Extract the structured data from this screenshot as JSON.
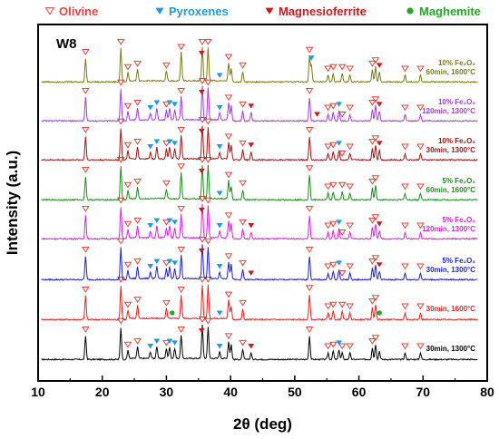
{
  "colors": {
    "olivine": "#e8443a",
    "pyroxenes": "#1e9be0",
    "magnesioferrite": "#cc1a1a",
    "maghemite": "#22aa22"
  },
  "legend": [
    {
      "key": "olivine",
      "label": "Olivine",
      "marker": "open-triangle-down"
    },
    {
      "key": "pyroxenes",
      "label": "Pyroxenes",
      "marker": "filled-triangle-down"
    },
    {
      "key": "magnesioferrite",
      "label": "Magnesioferrite",
      "marker": "filled-triangle-down"
    },
    {
      "key": "maghemite",
      "label": "Maghemite",
      "marker": "filled-circle"
    }
  ],
  "chart_data": {
    "type": "line",
    "panel_label": "W8",
    "xlabel": "2θ (deg)",
    "ylabel": "Intensity (a.u.)",
    "xlim": [
      10,
      80
    ],
    "x_ticks": [
      "10",
      "20",
      "30",
      "40",
      "50",
      "60",
      "70",
      "80"
    ],
    "y_ticks_shown": false,
    "series": [
      {
        "name": "30min, 1300°C",
        "label_lines": [
          "30min, 1300°C"
        ],
        "color": "#000000",
        "peaks": [
          [
            17.4,
            0.7
          ],
          [
            22.9,
            0.95
          ],
          [
            24.0,
            0.25
          ],
          [
            25.5,
            0.35
          ],
          [
            27.5,
            0.2
          ],
          [
            28.5,
            0.35
          ],
          [
            30.0,
            0.3
          ],
          [
            30.5,
            0.35
          ],
          [
            31.3,
            0.3
          ],
          [
            32.3,
            0.7
          ],
          [
            35.6,
            1.0
          ],
          [
            36.5,
            0.95
          ],
          [
            38.3,
            0.2
          ],
          [
            39.7,
            0.5
          ],
          [
            40.1,
            0.45
          ],
          [
            41.9,
            0.3
          ],
          [
            43.2,
            0.2
          ],
          [
            52.3,
            0.7
          ],
          [
            55.2,
            0.2
          ],
          [
            56.0,
            0.25
          ],
          [
            56.9,
            0.3
          ],
          [
            57.4,
            0.2
          ],
          [
            58.6,
            0.2
          ],
          [
            62.1,
            0.35
          ],
          [
            62.6,
            0.45
          ],
          [
            63.2,
            0.25
          ],
          [
            67.2,
            0.2
          ],
          [
            69.6,
            0.2
          ]
        ],
        "markers": {
          "olivine": [
            17.4,
            22.9,
            24.0,
            25.5,
            30.0,
            32.3,
            35.6,
            36.5,
            39.7,
            41.9,
            52.3,
            55.2,
            56.0,
            57.4,
            58.6,
            62.1,
            62.6,
            67.2,
            69.6
          ],
          "pyroxenes": [
            27.5,
            28.5,
            30.5,
            31.3,
            38.3,
            56.9
          ],
          "magnesioferrite": [
            35.5,
            43.2
          ],
          "maghemite": []
        }
      },
      {
        "name": "30min, 1600°C",
        "label_lines": [
          "30min, 1600°C"
        ],
        "color": "#e8231f",
        "peaks": [
          [
            17.4,
            0.7
          ],
          [
            22.9,
            1.0
          ],
          [
            24.0,
            0.25
          ],
          [
            25.5,
            0.4
          ],
          [
            30.0,
            0.3
          ],
          [
            32.3,
            0.7
          ],
          [
            35.6,
            1.0
          ],
          [
            36.5,
            1.0
          ],
          [
            39.7,
            0.55
          ],
          [
            40.1,
            0.4
          ],
          [
            41.9,
            0.3
          ],
          [
            52.3,
            0.75
          ],
          [
            55.2,
            0.2
          ],
          [
            56.0,
            0.25
          ],
          [
            57.4,
            0.25
          ],
          [
            58.6,
            0.2
          ],
          [
            62.1,
            0.35
          ],
          [
            62.6,
            0.45
          ],
          [
            67.2,
            0.2
          ],
          [
            69.6,
            0.2
          ]
        ],
        "markers": {
          "olivine": [
            17.4,
            22.9,
            24.0,
            25.5,
            30.0,
            32.3,
            35.6,
            36.5,
            39.7,
            41.9,
            52.3,
            55.2,
            56.0,
            57.4,
            58.6,
            62.1,
            62.6,
            67.2,
            69.6
          ],
          "pyroxenes": [
            38.3
          ],
          "magnesioferrite": [],
          "maghemite": [
            30.9,
            63.2
          ]
        }
      },
      {
        "name": "5% Fe2O3 30min, 1300°C",
        "label_lines": [
          "5% Fe₂O₃",
          "30min, 1300°C"
        ],
        "color": "#1f1fd6",
        "peaks": [
          [
            17.4,
            0.7
          ],
          [
            22.9,
            0.95
          ],
          [
            24.0,
            0.25
          ],
          [
            25.5,
            0.35
          ],
          [
            27.5,
            0.2
          ],
          [
            28.5,
            0.35
          ],
          [
            30.0,
            0.3
          ],
          [
            30.5,
            0.35
          ],
          [
            31.3,
            0.3
          ],
          [
            32.3,
            0.7
          ],
          [
            35.6,
            1.0
          ],
          [
            36.5,
            0.95
          ],
          [
            38.3,
            0.2
          ],
          [
            39.7,
            0.5
          ],
          [
            40.1,
            0.45
          ],
          [
            41.9,
            0.3
          ],
          [
            52.3,
            0.7
          ],
          [
            55.2,
            0.2
          ],
          [
            56.0,
            0.25
          ],
          [
            56.9,
            0.3
          ],
          [
            58.6,
            0.2
          ],
          [
            62.1,
            0.35
          ],
          [
            62.6,
            0.45
          ],
          [
            63.2,
            0.25
          ],
          [
            67.2,
            0.2
          ],
          [
            69.6,
            0.2
          ]
        ],
        "markers": {
          "olivine": [
            17.4,
            22.9,
            24.0,
            25.5,
            30.0,
            32.3,
            35.6,
            36.5,
            39.7,
            41.9,
            52.3,
            55.2,
            56.0,
            57.4,
            58.6,
            62.1,
            62.6,
            67.2,
            69.6
          ],
          "pyroxenes": [
            27.5,
            28.5,
            30.5,
            31.3,
            38.3,
            56.9
          ],
          "magnesioferrite": [
            35.5,
            43.2,
            63.2
          ],
          "maghemite": []
        }
      },
      {
        "name": "5% Fe2O3 120min, 1300°C",
        "label_lines": [
          "5% Fe₂O₃",
          "120min, 1300°C"
        ],
        "color": "#e020e0",
        "peaks": [
          [
            17.4,
            0.7
          ],
          [
            22.9,
            0.95
          ],
          [
            24.0,
            0.25
          ],
          [
            25.5,
            0.35
          ],
          [
            27.5,
            0.2
          ],
          [
            28.5,
            0.35
          ],
          [
            30.0,
            0.3
          ],
          [
            30.5,
            0.35
          ],
          [
            31.3,
            0.3
          ],
          [
            32.3,
            0.7
          ],
          [
            35.6,
            1.0
          ],
          [
            36.5,
            0.95
          ],
          [
            38.3,
            0.2
          ],
          [
            39.7,
            0.5
          ],
          [
            40.1,
            0.45
          ],
          [
            41.9,
            0.3
          ],
          [
            43.2,
            0.2
          ],
          [
            52.3,
            0.7
          ],
          [
            55.2,
            0.2
          ],
          [
            56.0,
            0.25
          ],
          [
            56.9,
            0.3
          ],
          [
            58.6,
            0.2
          ],
          [
            62.1,
            0.35
          ],
          [
            62.6,
            0.45
          ],
          [
            63.2,
            0.25
          ],
          [
            67.2,
            0.2
          ],
          [
            69.6,
            0.2
          ]
        ],
        "markers": {
          "olivine": [
            17.4,
            22.9,
            24.0,
            25.5,
            30.0,
            32.3,
            35.6,
            36.5,
            39.7,
            41.9,
            52.3,
            55.2,
            56.0,
            57.4,
            58.6,
            62.1,
            62.6,
            67.2,
            69.6
          ],
          "pyroxenes": [
            27.5,
            28.5,
            30.5,
            31.3,
            38.3,
            56.9
          ],
          "magnesioferrite": [
            35.5,
            43.2,
            63.2
          ],
          "maghemite": []
        }
      },
      {
        "name": "5% Fe2O3 60min, 1600°C",
        "label_lines": [
          "5% Fe₂O₃",
          "60min, 1600°C"
        ],
        "color": "#1e8c1e",
        "peaks": [
          [
            17.4,
            0.7
          ],
          [
            22.9,
            1.0
          ],
          [
            24.0,
            0.25
          ],
          [
            25.5,
            0.35
          ],
          [
            30.0,
            0.3
          ],
          [
            32.3,
            0.8
          ],
          [
            35.6,
            1.0
          ],
          [
            36.5,
            1.0
          ],
          [
            39.7,
            0.55
          ],
          [
            40.1,
            0.4
          ],
          [
            41.9,
            0.3
          ],
          [
            52.3,
            0.75
          ],
          [
            55.2,
            0.2
          ],
          [
            56.0,
            0.25
          ],
          [
            57.4,
            0.25
          ],
          [
            58.6,
            0.2
          ],
          [
            62.1,
            0.35
          ],
          [
            62.6,
            0.45
          ],
          [
            67.2,
            0.2
          ],
          [
            69.6,
            0.2
          ]
        ],
        "markers": {
          "olivine": [
            17.4,
            22.9,
            24.0,
            25.5,
            30.0,
            32.3,
            35.6,
            36.5,
            39.7,
            41.9,
            52.3,
            55.2,
            56.0,
            57.4,
            58.6,
            62.1,
            62.6,
            67.2,
            69.6
          ],
          "pyroxenes": [
            38.3
          ],
          "magnesioferrite": [
            35.5
          ],
          "maghemite": []
        }
      },
      {
        "name": "10% Fe2O3 30min, 1300°C",
        "label_lines": [
          "10% Fe₂O₃",
          "30min, 1300°C"
        ],
        "color": "#a01515",
        "peaks": [
          [
            17.4,
            0.7
          ],
          [
            22.9,
            0.95
          ],
          [
            24.0,
            0.25
          ],
          [
            25.5,
            0.35
          ],
          [
            27.5,
            0.2
          ],
          [
            28.5,
            0.35
          ],
          [
            30.0,
            0.3
          ],
          [
            30.5,
            0.35
          ],
          [
            31.3,
            0.3
          ],
          [
            32.3,
            0.7
          ],
          [
            35.6,
            1.0
          ],
          [
            36.5,
            0.95
          ],
          [
            38.3,
            0.2
          ],
          [
            39.7,
            0.5
          ],
          [
            40.1,
            0.45
          ],
          [
            41.9,
            0.3
          ],
          [
            43.2,
            0.25
          ],
          [
            52.3,
            0.7
          ],
          [
            55.2,
            0.2
          ],
          [
            56.0,
            0.25
          ],
          [
            56.9,
            0.3
          ],
          [
            58.6,
            0.2
          ],
          [
            62.1,
            0.35
          ],
          [
            62.6,
            0.45
          ],
          [
            63.2,
            0.3
          ],
          [
            67.2,
            0.2
          ],
          [
            69.6,
            0.2
          ]
        ],
        "markers": {
          "olivine": [
            17.4,
            22.9,
            24.0,
            25.5,
            30.0,
            32.3,
            35.6,
            36.5,
            39.7,
            41.9,
            52.3,
            55.2,
            56.0,
            57.4,
            58.6,
            62.1,
            62.6,
            67.2,
            69.6
          ],
          "pyroxenes": [
            27.5,
            28.5,
            30.5,
            31.3,
            38.3,
            56.9
          ],
          "magnesioferrite": [
            35.5,
            43.2,
            63.2
          ],
          "maghemite": []
        }
      },
      {
        "name": "10% Fe2O3 120min, 1300°C",
        "label_lines": [
          "10% Fe₂O₃",
          "120min, 1300°C"
        ],
        "color": "#a23be0",
        "peaks": [
          [
            17.4,
            0.7
          ],
          [
            22.9,
            0.95
          ],
          [
            24.0,
            0.25
          ],
          [
            25.5,
            0.35
          ],
          [
            27.5,
            0.2
          ],
          [
            28.5,
            0.35
          ],
          [
            30.0,
            0.3
          ],
          [
            30.5,
            0.35
          ],
          [
            31.3,
            0.3
          ],
          [
            32.3,
            0.7
          ],
          [
            35.6,
            1.0
          ],
          [
            36.5,
            0.95
          ],
          [
            38.3,
            0.2
          ],
          [
            39.7,
            0.5
          ],
          [
            40.1,
            0.45
          ],
          [
            41.9,
            0.3
          ],
          [
            43.2,
            0.25
          ],
          [
            52.3,
            0.7
          ],
          [
            55.2,
            0.2
          ],
          [
            56.0,
            0.25
          ],
          [
            56.9,
            0.3
          ],
          [
            58.6,
            0.2
          ],
          [
            62.1,
            0.35
          ],
          [
            62.6,
            0.45
          ],
          [
            63.2,
            0.3
          ],
          [
            67.2,
            0.2
          ],
          [
            69.6,
            0.2
          ]
        ],
        "markers": {
          "olivine": [
            17.4,
            22.9,
            24.0,
            25.5,
            30.0,
            32.3,
            35.6,
            36.5,
            39.7,
            41.9,
            52.3,
            55.2,
            56.0,
            57.4,
            58.6,
            62.1,
            62.6,
            67.2,
            69.6
          ],
          "pyroxenes": [
            27.5,
            28.5,
            30.5,
            31.3,
            38.3,
            56.9
          ],
          "magnesioferrite": [
            35.5,
            43.2,
            53.5,
            63.2
          ],
          "maghemite": []
        }
      },
      {
        "name": "10% Fe2O3 60min, 1600°C",
        "label_lines": [
          "10% Fe₂O₃",
          "60min, 1600°C"
        ],
        "color": "#7a7a1a",
        "peaks": [
          [
            17.4,
            0.7
          ],
          [
            22.9,
            1.0
          ],
          [
            24.0,
            0.25
          ],
          [
            25.5,
            0.35
          ],
          [
            30.0,
            0.3
          ],
          [
            32.3,
            0.85
          ],
          [
            35.6,
            1.0
          ],
          [
            36.5,
            1.0
          ],
          [
            39.7,
            0.55
          ],
          [
            40.1,
            0.4
          ],
          [
            41.9,
            0.3
          ],
          [
            52.3,
            0.75
          ],
          [
            52.6,
            0.5
          ],
          [
            55.2,
            0.2
          ],
          [
            56.0,
            0.25
          ],
          [
            57.4,
            0.25
          ],
          [
            58.6,
            0.2
          ],
          [
            62.1,
            0.35
          ],
          [
            62.6,
            0.45
          ],
          [
            63.2,
            0.3
          ],
          [
            67.2,
            0.2
          ],
          [
            69.6,
            0.2
          ]
        ],
        "markers": {
          "olivine": [
            17.4,
            22.9,
            24.0,
            25.5,
            30.0,
            32.3,
            35.6,
            36.5,
            39.7,
            41.9,
            52.3,
            55.2,
            56.0,
            57.4,
            58.6,
            62.1,
            62.6,
            67.2,
            69.6
          ],
          "pyroxenes": [
            38.3,
            52.6
          ],
          "magnesioferrite": [
            35.5,
            63.2
          ],
          "maghemite": []
        }
      }
    ]
  }
}
